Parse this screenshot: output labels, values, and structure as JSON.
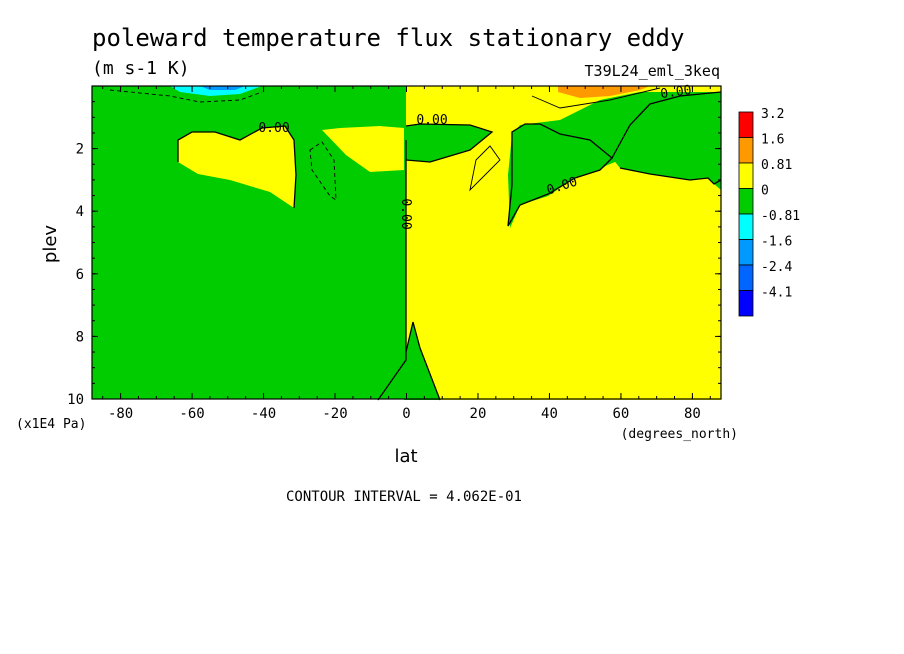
{
  "chart_data": {
    "type": "heatmap",
    "title": "poleward temperature flux stationary eddy",
    "units": "(m s-1 K)",
    "run_label": "T39L24_eml_3keq",
    "xlabel": "lat",
    "xunits": "(degrees_north)",
    "ylabel": "plev",
    "yunits": "(x1E4 Pa)",
    "xlim": [
      -88,
      88
    ],
    "ylim": [
      10,
      0
    ],
    "x_ticks": [
      "-80",
      "-60",
      "-40",
      "-20",
      "0",
      "20",
      "40",
      "60",
      "80"
    ],
    "y_ticks": [
      "2",
      "4",
      "6",
      "8",
      "10"
    ],
    "contour_labels": [
      "0.00",
      "0.00",
      "0.00",
      "0.00",
      "0.00"
    ],
    "footer": "CONTOUR INTERVAL = 4.062E-01",
    "legend": {
      "labels": [
        "3.2",
        "1.6",
        "0.81",
        "0",
        "-0.81",
        "-1.6",
        "-2.4",
        "-4.1"
      ],
      "colors": [
        "#ff0000",
        "#ff9900",
        "#ffff00",
        "#00cc00",
        "#00ffff",
        "#0099ff",
        "#0066ff",
        "#0000ff"
      ]
    },
    "fill_colors": {
      "negative": "#00cc00",
      "positive": "#ffff00",
      "strong_positive": "#ff9900",
      "negative_strong": "#00ffff",
      "negative_stronger": "#0099ff"
    }
  }
}
